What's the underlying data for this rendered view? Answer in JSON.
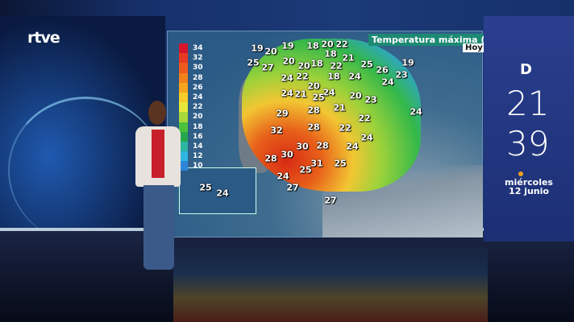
{
  "broadcaster": "rtve",
  "map": {
    "title": "Temperatura máxima (°C)",
    "period": "Hoy",
    "legend": [
      {
        "value": "34",
        "color": "#d8142a"
      },
      {
        "value": "32",
        "color": "#e83a22"
      },
      {
        "value": "30",
        "color": "#ef5a1e"
      },
      {
        "value": "28",
        "color": "#f2801c"
      },
      {
        "value": "26",
        "color": "#f6a41e"
      },
      {
        "value": "24",
        "color": "#f8cc2a"
      },
      {
        "value": "22",
        "color": "#e8e83a"
      },
      {
        "value": "20",
        "color": "#a8d83a"
      },
      {
        "value": "18",
        "color": "#4cc23c"
      },
      {
        "value": "16",
        "color": "#26a84c"
      },
      {
        "value": "14",
        "color": "#2ab6a0"
      },
      {
        "value": "12",
        "color": "#30b4e0"
      },
      {
        "value": "10",
        "color": "#2c86d8"
      }
    ],
    "temperatures": [
      "19",
      "20",
      "19",
      "18",
      "20",
      "22",
      "25",
      "27",
      "20",
      "20",
      "18",
      "22",
      "18",
      "21",
      "25",
      "26",
      "19",
      "23",
      "24",
      "24",
      "22",
      "18",
      "24",
      "20",
      "24",
      "24",
      "21",
      "25",
      "20",
      "23",
      "29",
      "28",
      "21",
      "22",
      "24",
      "32",
      "28",
      "22",
      "24",
      "30",
      "28",
      "24",
      "28",
      "30",
      "31",
      "25",
      "25",
      "24",
      "27",
      "27"
    ],
    "canarias": [
      "25",
      "24"
    ]
  },
  "clock": {
    "hour": "21",
    "minute": "39"
  },
  "date": {
    "weekday": "miércoles",
    "day": "12 junio"
  }
}
